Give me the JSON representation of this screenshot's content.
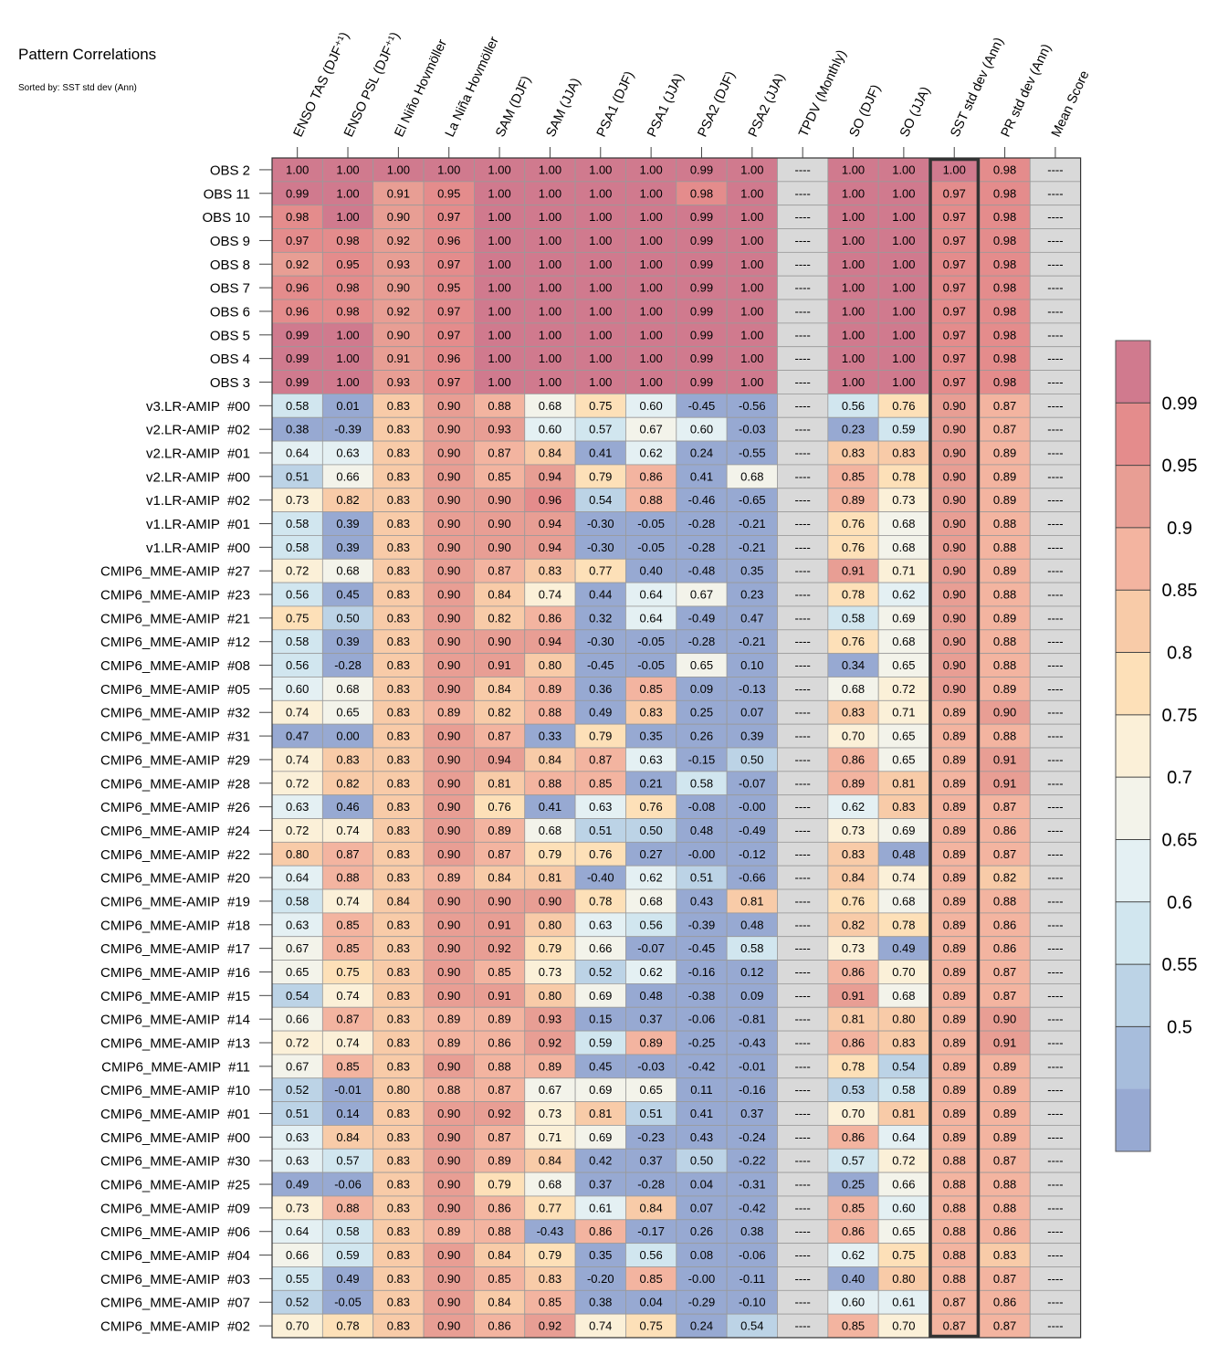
{
  "title": "Pattern Correlations",
  "subtitle": "Sorted by: SST std dev (Ann)",
  "chart_data": {
    "type": "heatmap",
    "title": "Pattern Correlations",
    "subtitle": "Sorted by: SST std dev (Ann)",
    "columns": [
      "ENSO TAS (DJF⁺¹)",
      "ENSO PSL (DJF⁺¹)",
      "El Niño Hovmöller",
      "La Niña Hovmöller",
      "SAM (DJF)",
      "SAM (JJA)",
      "PSA1 (DJF)",
      "PSA1 (JJA)",
      "PSA2 (DJF)",
      "PSA2 (JJA)",
      "TPDV (Monthly)",
      "SO (DJF)",
      "SO (JJA)",
      "SST std dev (Ann)",
      "PR std dev (Ann)",
      "Mean Score"
    ],
    "rows": [
      "OBS 2",
      "OBS 11",
      "OBS 10",
      "OBS 9",
      "OBS 8",
      "OBS 7",
      "OBS 6",
      "OBS 5",
      "OBS 4",
      "OBS 3",
      "v3.LR-AMIP  #00",
      "v2.LR-AMIP  #02",
      "v2.LR-AMIP  #01",
      "v2.LR-AMIP  #00",
      "v1.LR-AMIP  #02",
      "v1.LR-AMIP  #01",
      "v1.LR-AMIP  #00",
      "CMIP6_MME-AMIP  #27",
      "CMIP6_MME-AMIP  #23",
      "CMIP6_MME-AMIP  #21",
      "CMIP6_MME-AMIP  #12",
      "CMIP6_MME-AMIP  #08",
      "CMIP6_MME-AMIP  #05",
      "CMIP6_MME-AMIP  #32",
      "CMIP6_MME-AMIP  #31",
      "CMIP6_MME-AMIP  #29",
      "CMIP6_MME-AMIP  #28",
      "CMIP6_MME-AMIP  #26",
      "CMIP6_MME-AMIP  #24",
      "CMIP6_MME-AMIP  #22",
      "CMIP6_MME-AMIP  #20",
      "CMIP6_MME-AMIP  #19",
      "CMIP6_MME-AMIP  #18",
      "CMIP6_MME-AMIP  #17",
      "CMIP6_MME-AMIP  #16",
      "CMIP6_MME-AMIP  #15",
      "CMIP6_MME-AMIP  #14",
      "CMIP6_MME-AMIP  #13",
      "CMIP6_MME-AMIP  #11",
      "CMIP6_MME-AMIP  #10",
      "CMIP6_MME-AMIP  #01",
      "CMIP6_MME-AMIP  #00",
      "CMIP6_MME-AMIP  #30",
      "CMIP6_MME-AMIP  #25",
      "CMIP6_MME-AMIP  #09",
      "CMIP6_MME-AMIP  #06",
      "CMIP6_MME-AMIP  #04",
      "CMIP6_MME-AMIP  #03",
      "CMIP6_MME-AMIP  #07",
      "CMIP6_MME-AMIP  #02"
    ],
    "values": [
      [
        "1.00",
        "1.00",
        "1.00",
        "1.00",
        "1.00",
        "1.00",
        "1.00",
        "1.00",
        "0.99",
        "1.00",
        "----",
        "1.00",
        "1.00",
        "1.00",
        "0.98",
        "----"
      ],
      [
        "0.99",
        "1.00",
        "0.91",
        "0.95",
        "1.00",
        "1.00",
        "1.00",
        "1.00",
        "0.98",
        "1.00",
        "----",
        "1.00",
        "1.00",
        "0.97",
        "0.98",
        "----"
      ],
      [
        "0.98",
        "1.00",
        "0.90",
        "0.97",
        "1.00",
        "1.00",
        "1.00",
        "1.00",
        "0.99",
        "1.00",
        "----",
        "1.00",
        "1.00",
        "0.97",
        "0.98",
        "----"
      ],
      [
        "0.97",
        "0.98",
        "0.92",
        "0.96",
        "1.00",
        "1.00",
        "1.00",
        "1.00",
        "0.99",
        "1.00",
        "----",
        "1.00",
        "1.00",
        "0.97",
        "0.98",
        "----"
      ],
      [
        "0.92",
        "0.95",
        "0.93",
        "0.97",
        "1.00",
        "1.00",
        "1.00",
        "1.00",
        "0.99",
        "1.00",
        "----",
        "1.00",
        "1.00",
        "0.97",
        "0.98",
        "----"
      ],
      [
        "0.96",
        "0.98",
        "0.90",
        "0.95",
        "1.00",
        "1.00",
        "1.00",
        "1.00",
        "0.99",
        "1.00",
        "----",
        "1.00",
        "1.00",
        "0.97",
        "0.98",
        "----"
      ],
      [
        "0.96",
        "0.98",
        "0.92",
        "0.97",
        "1.00",
        "1.00",
        "1.00",
        "1.00",
        "0.99",
        "1.00",
        "----",
        "1.00",
        "1.00",
        "0.97",
        "0.98",
        "----"
      ],
      [
        "0.99",
        "1.00",
        "0.90",
        "0.97",
        "1.00",
        "1.00",
        "1.00",
        "1.00",
        "0.99",
        "1.00",
        "----",
        "1.00",
        "1.00",
        "0.97",
        "0.98",
        "----"
      ],
      [
        "0.99",
        "1.00",
        "0.91",
        "0.96",
        "1.00",
        "1.00",
        "1.00",
        "1.00",
        "0.99",
        "1.00",
        "----",
        "1.00",
        "1.00",
        "0.97",
        "0.98",
        "----"
      ],
      [
        "0.99",
        "1.00",
        "0.93",
        "0.97",
        "1.00",
        "1.00",
        "1.00",
        "1.00",
        "0.99",
        "1.00",
        "----",
        "1.00",
        "1.00",
        "0.97",
        "0.98",
        "----"
      ],
      [
        "0.58",
        "0.01",
        "0.83",
        "0.90",
        "0.88",
        "0.68",
        "0.75",
        "0.60",
        "-0.45",
        "-0.56",
        "----",
        "0.56",
        "0.76",
        "0.90",
        "0.87",
        "----"
      ],
      [
        "0.38",
        "-0.39",
        "0.83",
        "0.90",
        "0.93",
        "0.60",
        "0.57",
        "0.67",
        "0.60",
        "-0.03",
        "----",
        "0.23",
        "0.59",
        "0.90",
        "0.87",
        "----"
      ],
      [
        "0.64",
        "0.63",
        "0.83",
        "0.90",
        "0.87",
        "0.84",
        "0.41",
        "0.62",
        "0.24",
        "-0.55",
        "----",
        "0.83",
        "0.83",
        "0.90",
        "0.89",
        "----"
      ],
      [
        "0.51",
        "0.66",
        "0.83",
        "0.90",
        "0.85",
        "0.94",
        "0.79",
        "0.86",
        "0.41",
        "0.68",
        "----",
        "0.85",
        "0.78",
        "0.90",
        "0.89",
        "----"
      ],
      [
        "0.73",
        "0.82",
        "0.83",
        "0.90",
        "0.90",
        "0.96",
        "0.54",
        "0.88",
        "-0.46",
        "-0.65",
        "----",
        "0.89",
        "0.73",
        "0.90",
        "0.89",
        "----"
      ],
      [
        "0.58",
        "0.39",
        "0.83",
        "0.90",
        "0.90",
        "0.94",
        "-0.30",
        "-0.05",
        "-0.28",
        "-0.21",
        "----",
        "0.76",
        "0.68",
        "0.90",
        "0.88",
        "----"
      ],
      [
        "0.58",
        "0.39",
        "0.83",
        "0.90",
        "0.90",
        "0.94",
        "-0.30",
        "-0.05",
        "-0.28",
        "-0.21",
        "----",
        "0.76",
        "0.68",
        "0.90",
        "0.88",
        "----"
      ],
      [
        "0.72",
        "0.68",
        "0.83",
        "0.90",
        "0.87",
        "0.83",
        "0.77",
        "0.40",
        "-0.48",
        "0.35",
        "----",
        "0.91",
        "0.71",
        "0.90",
        "0.89",
        "----"
      ],
      [
        "0.56",
        "0.45",
        "0.83",
        "0.90",
        "0.84",
        "0.74",
        "0.44",
        "0.64",
        "0.67",
        "0.23",
        "----",
        "0.78",
        "0.62",
        "0.90",
        "0.88",
        "----"
      ],
      [
        "0.75",
        "0.50",
        "0.83",
        "0.90",
        "0.82",
        "0.86",
        "0.32",
        "0.64",
        "-0.49",
        "0.47",
        "----",
        "0.58",
        "0.69",
        "0.90",
        "0.89",
        "----"
      ],
      [
        "0.58",
        "0.39",
        "0.83",
        "0.90",
        "0.90",
        "0.94",
        "-0.30",
        "-0.05",
        "-0.28",
        "-0.21",
        "----",
        "0.76",
        "0.68",
        "0.90",
        "0.88",
        "----"
      ],
      [
        "0.56",
        "-0.28",
        "0.83",
        "0.90",
        "0.91",
        "0.80",
        "-0.45",
        "-0.05",
        "0.65",
        "0.10",
        "----",
        "0.34",
        "0.65",
        "0.90",
        "0.88",
        "----"
      ],
      [
        "0.60",
        "0.68",
        "0.83",
        "0.90",
        "0.84",
        "0.89",
        "0.36",
        "0.85",
        "0.09",
        "-0.13",
        "----",
        "0.68",
        "0.72",
        "0.90",
        "0.89",
        "----"
      ],
      [
        "0.74",
        "0.65",
        "0.83",
        "0.89",
        "0.82",
        "0.88",
        "0.49",
        "0.83",
        "0.25",
        "0.07",
        "----",
        "0.83",
        "0.71",
        "0.89",
        "0.90",
        "----"
      ],
      [
        "0.47",
        "0.00",
        "0.83",
        "0.90",
        "0.87",
        "0.33",
        "0.79",
        "0.35",
        "0.26",
        "0.39",
        "----",
        "0.70",
        "0.65",
        "0.89",
        "0.88",
        "----"
      ],
      [
        "0.74",
        "0.83",
        "0.83",
        "0.90",
        "0.94",
        "0.84",
        "0.87",
        "0.63",
        "-0.15",
        "0.50",
        "----",
        "0.86",
        "0.65",
        "0.89",
        "0.91",
        "----"
      ],
      [
        "0.72",
        "0.82",
        "0.83",
        "0.90",
        "0.81",
        "0.88",
        "0.85",
        "0.21",
        "0.58",
        "-0.07",
        "----",
        "0.89",
        "0.81",
        "0.89",
        "0.91",
        "----"
      ],
      [
        "0.63",
        "0.46",
        "0.83",
        "0.90",
        "0.76",
        "0.41",
        "0.63",
        "0.76",
        "-0.08",
        "-0.00",
        "----",
        "0.62",
        "0.83",
        "0.89",
        "0.87",
        "----"
      ],
      [
        "0.72",
        "0.74",
        "0.83",
        "0.90",
        "0.89",
        "0.68",
        "0.51",
        "0.50",
        "0.48",
        "-0.49",
        "----",
        "0.73",
        "0.69",
        "0.89",
        "0.86",
        "----"
      ],
      [
        "0.80",
        "0.87",
        "0.83",
        "0.90",
        "0.87",
        "0.79",
        "0.76",
        "0.27",
        "-0.00",
        "-0.12",
        "----",
        "0.83",
        "0.48",
        "0.89",
        "0.87",
        "----"
      ],
      [
        "0.64",
        "0.88",
        "0.83",
        "0.89",
        "0.84",
        "0.81",
        "-0.40",
        "0.62",
        "0.51",
        "-0.66",
        "----",
        "0.84",
        "0.74",
        "0.89",
        "0.82",
        "----"
      ],
      [
        "0.58",
        "0.74",
        "0.84",
        "0.90",
        "0.90",
        "0.90",
        "0.78",
        "0.68",
        "0.43",
        "0.81",
        "----",
        "0.76",
        "0.68",
        "0.89",
        "0.88",
        "----"
      ],
      [
        "0.63",
        "0.85",
        "0.83",
        "0.90",
        "0.91",
        "0.80",
        "0.63",
        "0.56",
        "-0.39",
        "0.48",
        "----",
        "0.82",
        "0.78",
        "0.89",
        "0.86",
        "----"
      ],
      [
        "0.67",
        "0.85",
        "0.83",
        "0.90",
        "0.92",
        "0.79",
        "0.66",
        "-0.07",
        "-0.45",
        "0.58",
        "----",
        "0.73",
        "0.49",
        "0.89",
        "0.86",
        "----"
      ],
      [
        "0.65",
        "0.75",
        "0.83",
        "0.90",
        "0.85",
        "0.73",
        "0.52",
        "0.62",
        "-0.16",
        "0.12",
        "----",
        "0.86",
        "0.70",
        "0.89",
        "0.87",
        "----"
      ],
      [
        "0.54",
        "0.74",
        "0.83",
        "0.90",
        "0.91",
        "0.80",
        "0.69",
        "0.48",
        "-0.38",
        "0.09",
        "----",
        "0.91",
        "0.68",
        "0.89",
        "0.87",
        "----"
      ],
      [
        "0.66",
        "0.87",
        "0.83",
        "0.89",
        "0.89",
        "0.93",
        "0.15",
        "0.37",
        "-0.06",
        "-0.81",
        "----",
        "0.81",
        "0.80",
        "0.89",
        "0.90",
        "----"
      ],
      [
        "0.72",
        "0.74",
        "0.83",
        "0.89",
        "0.86",
        "0.92",
        "0.59",
        "0.89",
        "-0.25",
        "-0.43",
        "----",
        "0.86",
        "0.83",
        "0.89",
        "0.91",
        "----"
      ],
      [
        "0.67",
        "0.85",
        "0.83",
        "0.90",
        "0.88",
        "0.89",
        "0.45",
        "-0.03",
        "-0.42",
        "-0.01",
        "----",
        "0.78",
        "0.54",
        "0.89",
        "0.89",
        "----"
      ],
      [
        "0.52",
        "-0.01",
        "0.80",
        "0.88",
        "0.87",
        "0.67",
        "0.69",
        "0.65",
        "0.11",
        "-0.16",
        "----",
        "0.53",
        "0.58",
        "0.89",
        "0.89",
        "----"
      ],
      [
        "0.51",
        "0.14",
        "0.83",
        "0.90",
        "0.92",
        "0.73",
        "0.81",
        "0.51",
        "0.41",
        "0.37",
        "----",
        "0.70",
        "0.81",
        "0.89",
        "0.89",
        "----"
      ],
      [
        "0.63",
        "0.84",
        "0.83",
        "0.90",
        "0.87",
        "0.71",
        "0.69",
        "-0.23",
        "0.43",
        "-0.24",
        "----",
        "0.86",
        "0.64",
        "0.89",
        "0.89",
        "----"
      ],
      [
        "0.63",
        "0.57",
        "0.83",
        "0.90",
        "0.89",
        "0.84",
        "0.42",
        "0.37",
        "0.50",
        "-0.22",
        "----",
        "0.57",
        "0.72",
        "0.88",
        "0.87",
        "----"
      ],
      [
        "0.49",
        "-0.06",
        "0.83",
        "0.90",
        "0.79",
        "0.68",
        "0.37",
        "-0.28",
        "0.04",
        "-0.31",
        "----",
        "0.25",
        "0.66",
        "0.88",
        "0.88",
        "----"
      ],
      [
        "0.73",
        "0.88",
        "0.83",
        "0.90",
        "0.86",
        "0.77",
        "0.61",
        "0.84",
        "0.07",
        "-0.42",
        "----",
        "0.85",
        "0.60",
        "0.88",
        "0.88",
        "----"
      ],
      [
        "0.64",
        "0.58",
        "0.83",
        "0.89",
        "0.88",
        "-0.43",
        "0.86",
        "-0.17",
        "0.26",
        "0.38",
        "----",
        "0.86",
        "0.65",
        "0.88",
        "0.86",
        "----"
      ],
      [
        "0.66",
        "0.59",
        "0.83",
        "0.90",
        "0.84",
        "0.79",
        "0.35",
        "0.56",
        "0.08",
        "-0.06",
        "----",
        "0.62",
        "0.75",
        "0.88",
        "0.83",
        "----"
      ],
      [
        "0.55",
        "0.49",
        "0.83",
        "0.90",
        "0.85",
        "0.83",
        "-0.20",
        "0.85",
        "-0.00",
        "-0.11",
        "----",
        "0.40",
        "0.80",
        "0.88",
        "0.87",
        "----"
      ],
      [
        "0.52",
        "-0.05",
        "0.83",
        "0.90",
        "0.84",
        "0.85",
        "0.38",
        "0.04",
        "-0.29",
        "-0.10",
        "----",
        "0.60",
        "0.61",
        "0.87",
        "0.86",
        "----"
      ],
      [
        "0.70",
        "0.78",
        "0.83",
        "0.90",
        "0.86",
        "0.92",
        "0.74",
        "0.75",
        "0.24",
        "0.54",
        "----",
        "0.85",
        "0.70",
        "0.87",
        "0.87",
        "----"
      ]
    ],
    "highlighted_column": "SST std dev (Ann)",
    "colorbar": {
      "tick_labels": [
        "0.99",
        "0.95",
        "0.9",
        "0.85",
        "0.8",
        "0.75",
        "0.7",
        "0.65",
        "0.6",
        "0.55",
        "0.5"
      ],
      "boundaries": [
        0.99,
        0.95,
        0.9,
        0.85,
        0.8,
        0.75,
        0.7,
        0.65,
        0.6,
        0.55,
        0.5
      ],
      "colors": [
        "#d07a8e",
        "#e48c8c",
        "#e89e94",
        "#f3b4a0",
        "#f8cba8",
        "#fde0b8",
        "#fbf0d8",
        "#f3f3ea",
        "#e4f0f3",
        "#d1e6ef",
        "#bcd3e6",
        "#a7bddc",
        "#97a9d2"
      ]
    },
    "missing_color": "#d9d9d9",
    "missing_label": "----"
  }
}
